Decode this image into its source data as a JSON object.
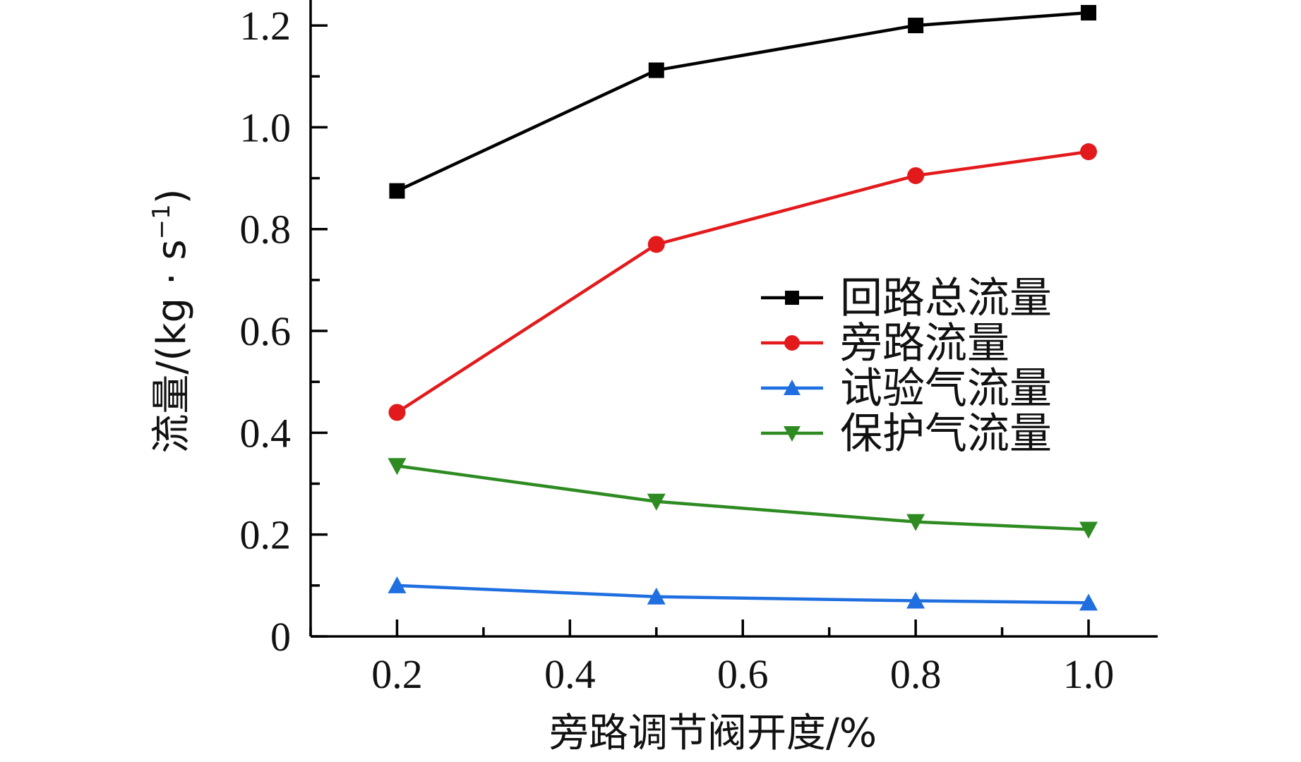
{
  "chart_data": {
    "type": "line",
    "xlabel": "旁路调节阀开度/%",
    "ylabel_main": "流量/(kg · s",
    "ylabel_sup": "−1",
    "ylabel_close": ")",
    "xlim": [
      0.1,
      1.08
    ],
    "ylim": [
      0,
      1.25
    ],
    "xticks": [
      0.2,
      0.4,
      0.6,
      0.8,
      1.0
    ],
    "xtick_labels": [
      "0.2",
      "0.4",
      "0.6",
      "0.8",
      "1.0"
    ],
    "yticks": [
      0,
      0.2,
      0.4,
      0.6,
      0.8,
      1.0,
      1.2
    ],
    "ytick_labels": [
      "0",
      "0.2",
      "0.4",
      "0.6",
      "0.8",
      "1.0",
      "1.2"
    ],
    "legend_position": "center-right",
    "grid": false,
    "x": [
      0.2,
      0.5,
      0.8,
      1.0
    ],
    "series": [
      {
        "name": "回路总流量",
        "color": "#000000",
        "marker": "square",
        "values": [
          0.875,
          1.112,
          1.2,
          1.225
        ]
      },
      {
        "name": "旁路流量",
        "color": "#e31a1c",
        "marker": "circle",
        "values": [
          0.44,
          0.77,
          0.905,
          0.952
        ]
      },
      {
        "name": "试验气流量",
        "color": "#1f6fe0",
        "marker": "triangle-up",
        "values": [
          0.1,
          0.078,
          0.07,
          0.066
        ]
      },
      {
        "name": "保护气流量",
        "color": "#2e8b22",
        "marker": "triangle-down",
        "values": [
          0.335,
          0.265,
          0.225,
          0.21
        ]
      }
    ]
  }
}
